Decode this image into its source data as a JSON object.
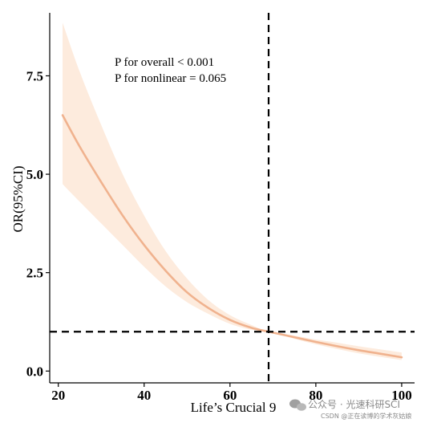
{
  "chart_data": {
    "type": "line",
    "xlabel": "Life’s Crucial 9",
    "ylabel": "OR(95%CI)",
    "xlim": [
      18,
      103
    ],
    "ylim": [
      -0.3,
      9.1
    ],
    "xticks": [
      20,
      40,
      60,
      80,
      100
    ],
    "xtick_labels": [
      "20",
      "40",
      "60",
      "80",
      "100"
    ],
    "yticks": [
      0,
      2.5,
      5,
      7.5
    ],
    "ytick_labels": [
      "0.0",
      "2.5",
      "5.0",
      "7.5"
    ],
    "grid": false,
    "annotations": [
      "P for overall < 0.001",
      "P for nonlinear = 0.065"
    ],
    "reference_lines": {
      "vertical_x": 69,
      "horizontal_y": 1.0
    },
    "series": [
      {
        "x": [
          21,
          25,
          30,
          35,
          40,
          45,
          50,
          55,
          60,
          65,
          69,
          75,
          80,
          85,
          90,
          95,
          100
        ],
        "values": [
          6.5,
          5.7,
          4.8,
          3.95,
          3.2,
          2.55,
          2.0,
          1.6,
          1.3,
          1.1,
          1.0,
          0.86,
          0.74,
          0.63,
          0.53,
          0.44,
          0.35
        ],
        "lower": [
          4.75,
          4.3,
          3.75,
          3.2,
          2.65,
          2.15,
          1.75,
          1.45,
          1.2,
          1.05,
          1.0,
          0.82,
          0.68,
          0.56,
          0.45,
          0.36,
          0.28
        ],
        "upper": [
          8.85,
          7.6,
          6.25,
          5.0,
          3.95,
          3.05,
          2.35,
          1.8,
          1.42,
          1.17,
          1.0,
          0.9,
          0.8,
          0.72,
          0.63,
          0.55,
          0.47
        ]
      }
    ]
  },
  "colors": {
    "line": "#F0B28E",
    "band": "#FDEBDD",
    "axis": "#000000",
    "reference": "#000000"
  },
  "watermark": {
    "line1": "公众号 · 光速科研SCI",
    "line2": "CSDN @正在读博的学术灰姑娘"
  }
}
